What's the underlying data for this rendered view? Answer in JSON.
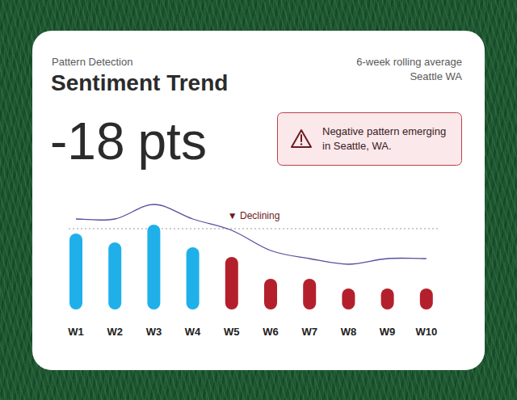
{
  "chart_data": {
    "type": "bar",
    "subtitle": "Pattern Detection",
    "title": "Sentiment Trend",
    "notes": [
      "6-week rolling average",
      "Seattle WA"
    ],
    "metric": {
      "value": -18,
      "unit": "pts"
    },
    "alert": "Negative pattern emerging in Seattle, WA.",
    "annotations": [
      {
        "text": "▼ Declining",
        "category": "W5"
      }
    ],
    "categories": [
      "W1",
      "W2",
      "W3",
      "W4",
      "W5",
      "W6",
      "W7",
      "W8",
      "W9",
      "W10"
    ],
    "series": [
      {
        "type": "bar",
        "colors": [
          "#1fb0ea",
          "#1fb0ea",
          "#1fb0ea",
          "#1fb0ea",
          "#b3202b",
          "#b3202b",
          "#b3202b",
          "#b3202b",
          "#b3202b",
          "#b3202b"
        ],
        "values": [
          94,
          83,
          105,
          77,
          65,
          38,
          38,
          26,
          26,
          26
        ]
      },
      {
        "type": "line",
        "color": "#55509e",
        "line_style": "solid",
        "values": [
          112,
          112,
          130,
          112,
          98,
          73,
          63,
          56,
          63,
          63
        ]
      }
    ],
    "reference_line": 100,
    "ylim": [
      0,
      140
    ],
    "grid": false,
    "tick_labels": "x"
  }
}
